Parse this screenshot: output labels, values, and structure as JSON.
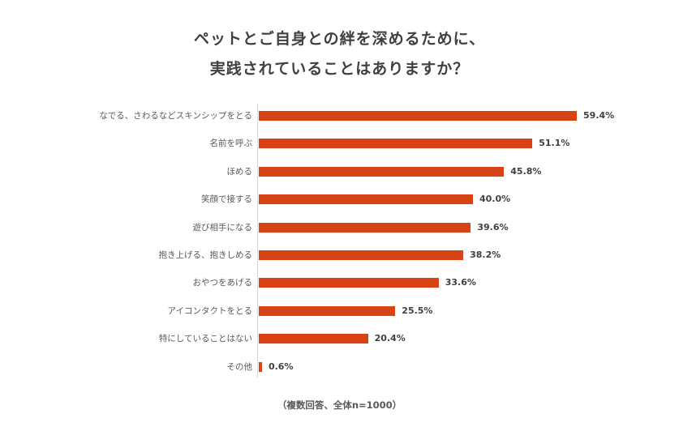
{
  "chart_data": {
    "type": "bar",
    "orientation": "horizontal",
    "title": "ペットとご自身との絆を深めるために、実践されていることはありますか？",
    "title_lines": [
      "ペットとご自身との絆を深めるために、",
      "実践されていることはありますか？"
    ],
    "categories": [
      "なでる、さわるなどスキンシップをとる",
      "名前を呼ぶ",
      "ほめる",
      "笑顔で接する",
      "遊び相手になる",
      "抱き上げる、抱きしめる",
      "おやつをあげる",
      "アイコンタクトをとる",
      "特にしていることはない",
      "その他"
    ],
    "values": [
      59.4,
      51.1,
      45.8,
      40.0,
      39.6,
      38.2,
      33.6,
      25.5,
      20.4,
      0.6
    ],
    "value_labels": [
      "59.4%",
      "51.1%",
      "45.8%",
      "40.0%",
      "39.6%",
      "38.2%",
      "33.6%",
      "25.5%",
      "20.4%",
      "0.6%"
    ],
    "unit": "%",
    "xlabel": "",
    "ylabel": "",
    "xlim": [
      0,
      60
    ],
    "grid": false,
    "legend": null,
    "bar_color": "#d84315",
    "footnote": "（複数回答、全体n=1000）"
  }
}
